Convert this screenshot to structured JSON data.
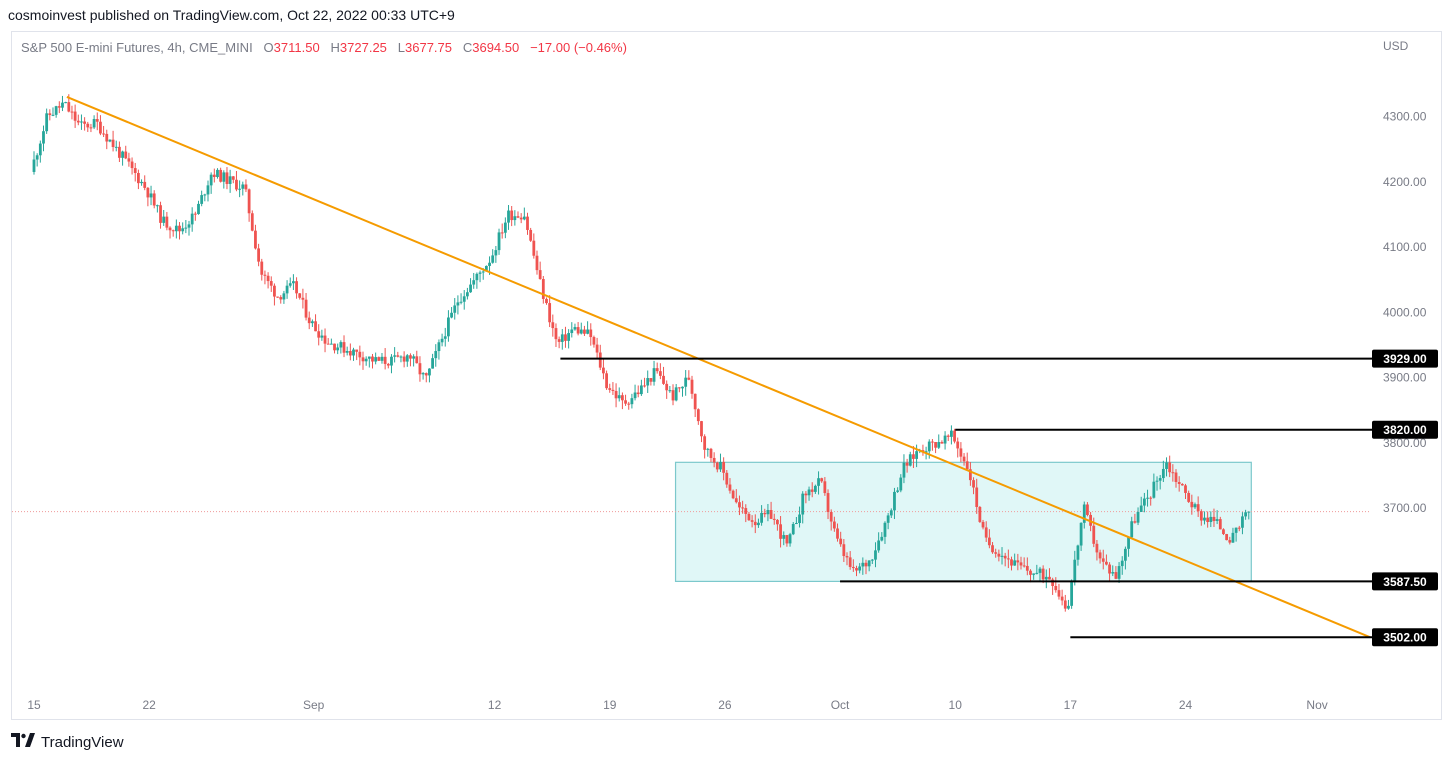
{
  "header": {
    "published_line": "cosmoinvest published on TradingView.com, Oct 22, 2022 00:33 UTC+9"
  },
  "legend": {
    "symbol": "S&P 500 E-mini Futures, 4h, CME_MINI",
    "o_label": "O",
    "o_value": "3711.50",
    "h_label": "H",
    "h_value": "3727.25",
    "l_label": "L",
    "l_value": "3677.75",
    "c_label": "C",
    "c_value": "3694.50",
    "change": "−17.00 (−0.46%)"
  },
  "axis": {
    "currency": "USD"
  },
  "footer": {
    "brand": "TradingView",
    "logo_icon": "tradingview-logo-icon"
  },
  "colors": {
    "up": "#26a69a",
    "down": "#ef5350",
    "trend": "#f59b00",
    "box_fill": "#e0f7f7",
    "box_stroke": "#7cc8cc",
    "level": "#000000"
  },
  "chart_data": {
    "type": "candlestick",
    "ylim": [
      3430,
      4400
    ],
    "y_ticks": [
      3700,
      3800,
      3900,
      4000,
      4100,
      4200,
      4300
    ],
    "y_tick_labels": [
      "3700.00",
      "3800.00",
      "3900.00",
      "4000.00",
      "4100.00",
      "4200.00",
      "4300.00"
    ],
    "x_ticks": [
      {
        "label": "15",
        "date": "2022-08-15"
      },
      {
        "label": "22",
        "date": "2022-08-22"
      },
      {
        "label": "Sep",
        "date": "2022-09-01"
      },
      {
        "label": "12",
        "date": "2022-09-12"
      },
      {
        "label": "19",
        "date": "2022-09-19"
      },
      {
        "label": "26",
        "date": "2022-09-26"
      },
      {
        "label": "Oct",
        "date": "2022-10-03"
      },
      {
        "label": "10",
        "date": "2022-10-10"
      },
      {
        "label": "17",
        "date": "2022-10-17"
      },
      {
        "label": "24",
        "date": "2022-10-24"
      },
      {
        "label": "Nov",
        "date": "2022-11-01"
      }
    ],
    "current_price": 3694.5,
    "path_closes": [
      {
        "date": "2022-08-15",
        "close": 4215
      },
      {
        "date": "2022-08-16",
        "close": 4300
      },
      {
        "date": "2022-08-17",
        "close": 4320
      },
      {
        "date": "2022-08-18",
        "close": 4285
      },
      {
        "date": "2022-08-19",
        "close": 4290
      },
      {
        "date": "2022-08-22",
        "close": 4190
      },
      {
        "date": "2022-08-23",
        "close": 4140
      },
      {
        "date": "2022-08-24",
        "close": 4125
      },
      {
        "date": "2022-08-25",
        "close": 4150
      },
      {
        "date": "2022-08-26",
        "close": 4215
      },
      {
        "date": "2022-08-28",
        "close": 4190
      },
      {
        "date": "2022-08-29",
        "close": 4060
      },
      {
        "date": "2022-08-30",
        "close": 4025
      },
      {
        "date": "2022-08-31",
        "close": 4040
      },
      {
        "date": "2022-09-01",
        "close": 3985
      },
      {
        "date": "2022-09-02",
        "close": 3955
      },
      {
        "date": "2022-09-05",
        "close": 3925
      },
      {
        "date": "2022-09-06",
        "close": 3925
      },
      {
        "date": "2022-09-07",
        "close": 3935
      },
      {
        "date": "2022-09-08",
        "close": 3895
      },
      {
        "date": "2022-09-09",
        "close": 3960
      },
      {
        "date": "2022-09-10",
        "close": 4020
      },
      {
        "date": "2022-09-11",
        "close": 4050
      },
      {
        "date": "2022-09-12",
        "close": 4085
      },
      {
        "date": "2022-09-13",
        "close": 4150
      },
      {
        "date": "2022-09-14",
        "close": 4150
      },
      {
        "date": "2022-09-15",
        "close": 4040
      },
      {
        "date": "2022-09-16",
        "close": 3950
      },
      {
        "date": "2022-09-17",
        "close": 3975
      },
      {
        "date": "2022-09-18",
        "close": 3965
      },
      {
        "date": "2022-09-19",
        "close": 3890
      },
      {
        "date": "2022-09-20",
        "close": 3860
      },
      {
        "date": "2022-09-21",
        "close": 3880
      },
      {
        "date": "2022-09-22",
        "close": 3910
      },
      {
        "date": "2022-09-23",
        "close": 3870
      },
      {
        "date": "2022-09-24",
        "close": 3900
      },
      {
        "date": "2022-09-25",
        "close": 3790
      },
      {
        "date": "2022-09-26",
        "close": 3760
      },
      {
        "date": "2022-09-27",
        "close": 3700
      },
      {
        "date": "2022-09-28",
        "close": 3680
      },
      {
        "date": "2022-09-29",
        "close": 3690
      },
      {
        "date": "2022-09-30",
        "close": 3640
      },
      {
        "date": "2022-10-01",
        "close": 3720
      },
      {
        "date": "2022-10-02",
        "close": 3740
      },
      {
        "date": "2022-10-03",
        "close": 3650
      },
      {
        "date": "2022-10-04",
        "close": 3600
      },
      {
        "date": "2022-10-05",
        "close": 3620
      },
      {
        "date": "2022-10-06",
        "close": 3680
      },
      {
        "date": "2022-10-07",
        "close": 3760
      },
      {
        "date": "2022-10-08",
        "close": 3790
      },
      {
        "date": "2022-10-09",
        "close": 3800
      },
      {
        "date": "2022-10-10",
        "close": 3810
      },
      {
        "date": "2022-10-11",
        "close": 3760
      },
      {
        "date": "2022-10-12",
        "close": 3650
      },
      {
        "date": "2022-10-13",
        "close": 3630
      },
      {
        "date": "2022-10-14",
        "close": 3610
      },
      {
        "date": "2022-10-15",
        "close": 3600
      },
      {
        "date": "2022-10-16",
        "close": 3595
      },
      {
        "date": "2022-10-17",
        "close": 3545
      },
      {
        "date": "2022-10-18",
        "close": 3700
      },
      {
        "date": "2022-10-19",
        "close": 3620
      },
      {
        "date": "2022-10-20",
        "close": 3595
      },
      {
        "date": "2022-10-21",
        "close": 3680
      },
      {
        "date": "2022-10-22",
        "close": 3720
      },
      {
        "date": "2022-10-23",
        "close": 3770
      },
      {
        "date": "2022-10-24",
        "close": 3730
      },
      {
        "date": "2022-10-25",
        "close": 3690
      },
      {
        "date": "2022-10-26",
        "close": 3680
      },
      {
        "date": "2022-10-27",
        "close": 3650
      },
      {
        "date": "2022-10-28",
        "close": 3694.5
      }
    ],
    "trendline": {
      "start": {
        "date": "2022-08-17",
        "price": 4330
      },
      "end": {
        "date": "2022-11-04",
        "price": 3502
      }
    },
    "range_box": {
      "start_date": "2022-09-23",
      "end_date": "2022-10-28",
      "top": 3770,
      "bottom": 3587.5
    },
    "levels": [
      {
        "price": 3929.0,
        "label": "3929.00",
        "start_date": "2022-09-16"
      },
      {
        "price": 3820.0,
        "label": "3820.00",
        "start_date": "2022-10-10"
      },
      {
        "price": 3587.5,
        "label": "3587.50",
        "start_date": "2022-10-03"
      },
      {
        "price": 3502.0,
        "label": "3502.00",
        "start_date": "2022-10-17"
      }
    ]
  }
}
